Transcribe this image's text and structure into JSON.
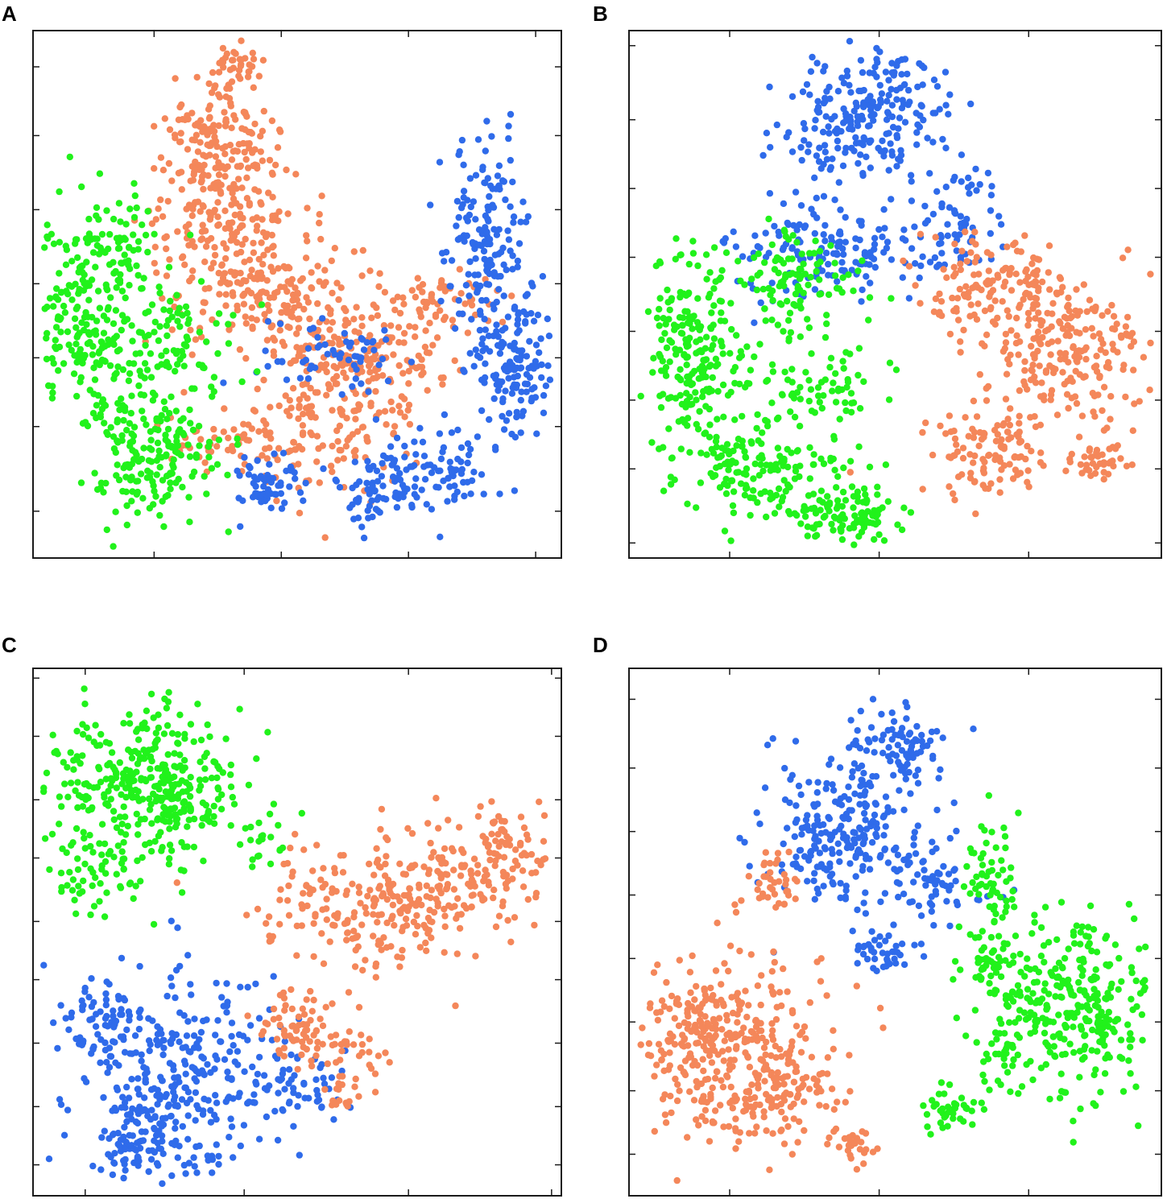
{
  "colors": {
    "orange": "#f4875a",
    "blue": "#2f6bea",
    "green": "#21f21b",
    "axis": "#1a1a1a"
  },
  "chart_data": [
    {
      "type": "scatter",
      "panel": "A",
      "title": "",
      "xlabel": "",
      "ylabel": "",
      "xlim": [
        0,
        100
      ],
      "ylim": [
        0,
        100
      ],
      "xticks": [
        23,
        47,
        71,
        95
      ],
      "yticks": [
        9,
        25,
        38,
        52,
        66,
        80,
        93
      ],
      "grid": false,
      "legend": "none",
      "series": [
        {
          "color": "orange",
          "blobs": [
            [
              38,
              93,
              3,
              2,
              30
            ],
            [
              35,
              80,
              5,
              7,
              140
            ],
            [
              37,
              64,
              8,
              8,
              200
            ],
            [
              45,
              50,
              8,
              5,
              150
            ],
            [
              58,
              40,
              7,
              4,
              80
            ],
            [
              55,
              25,
              9,
              7,
              140
            ],
            [
              66,
              36,
              7,
              5,
              90
            ],
            [
              78,
              49,
              5,
              3,
              60
            ],
            [
              36,
              22,
              6,
              3,
              40
            ]
          ]
        },
        {
          "color": "blue",
          "blobs": [
            [
              86,
              58,
              4,
              10,
              180
            ],
            [
              91,
              36,
              4,
              6,
              120
            ],
            [
              75,
              17,
              7,
              4,
              110
            ],
            [
              63,
              12,
              3,
              3,
              40
            ],
            [
              45,
              14,
              4,
              3,
              60
            ],
            [
              58,
              38,
              7,
              4,
              60
            ]
          ]
        },
        {
          "color": "green",
          "blobs": [
            [
              11,
              47,
              6,
              10,
              260
            ],
            [
              22,
              20,
              6,
              7,
              190
            ],
            [
              28,
              41,
              5,
              5,
              70
            ],
            [
              18,
              60,
              3,
              3,
              25
            ]
          ]
        }
      ]
    },
    {
      "type": "scatter",
      "panel": "B",
      "title": "",
      "xlabel": "",
      "ylabel": "",
      "xlim": [
        0,
        100
      ],
      "ylim": [
        0,
        100
      ],
      "xticks": [
        19,
        47,
        75
      ],
      "yticks": [
        3,
        17,
        30,
        43,
        57,
        70,
        83,
        97
      ],
      "grid": false,
      "legend": "none",
      "series": [
        {
          "color": "blue",
          "blobs": [
            [
              45,
              82,
              8,
              6,
              200
            ],
            [
              50,
              92,
              3,
              3,
              30
            ],
            [
              38,
              58,
              9,
              5,
              160
            ],
            [
              62,
              63,
              4,
              5,
              60
            ]
          ]
        },
        {
          "color": "orange",
          "blobs": [
            [
              83,
              39,
              8,
              6,
              220
            ],
            [
              68,
              20,
              6,
              4,
              110
            ],
            [
              64,
              51,
              5,
              5,
              90
            ],
            [
              75,
              52,
              3,
              4,
              50
            ],
            [
              88,
              18,
              3,
              2,
              40
            ]
          ]
        },
        {
          "color": "green",
          "blobs": [
            [
              12,
              38,
              5,
              9,
              220
            ],
            [
              25,
              18,
              8,
              5,
              160
            ],
            [
              40,
              8,
              6,
              3,
              110
            ],
            [
              30,
              53,
              7,
              5,
              110
            ],
            [
              35,
              33,
              8,
              4,
              70
            ]
          ]
        }
      ]
    },
    {
      "type": "scatter",
      "panel": "C",
      "title": "",
      "xlabel": "",
      "ylabel": "",
      "xlim": [
        0,
        100
      ],
      "ylim": [
        0,
        100
      ],
      "xticks": [
        10,
        40,
        71,
        98
      ],
      "yticks": [
        6,
        17,
        29,
        41,
        52,
        64,
        75,
        87,
        98
      ],
      "grid": false,
      "legend": "none",
      "series": [
        {
          "color": "green",
          "blobs": [
            [
              19,
              77,
              9,
              9,
              300
            ],
            [
              27,
              75,
              5,
              6,
              90
            ],
            [
              12,
              60,
              4,
              3,
              40
            ],
            [
              43,
              68,
              3,
              3,
              20
            ]
          ]
        },
        {
          "color": "blue",
          "blobs": [
            [
              27,
              22,
              10,
              11,
              320
            ],
            [
              20,
              10,
              4,
              3,
              60
            ],
            [
              12,
              32,
              4,
              5,
              60
            ],
            [
              50,
              21,
              5,
              4,
              60
            ]
          ]
        },
        {
          "color": "orange",
          "blobs": [
            [
              68,
              56,
              12,
              6,
              280
            ],
            [
              87,
              64,
              6,
              5,
              100
            ],
            [
              50,
              31,
              5,
              4,
              70
            ],
            [
              60,
              28,
              4,
              3,
              30
            ],
            [
              59,
              19,
              2,
              2,
              15
            ]
          ]
        }
      ]
    },
    {
      "type": "scatter",
      "panel": "D",
      "title": "",
      "xlabel": "",
      "ylabel": "",
      "xlim": [
        0,
        100
      ],
      "ylim": [
        0,
        100
      ],
      "xticks": [
        19,
        47,
        75
      ],
      "yticks": [
        8,
        20,
        33,
        45,
        57,
        69,
        81,
        94
      ],
      "grid": false,
      "legend": "none",
      "series": [
        {
          "color": "blue",
          "blobs": [
            [
              40,
              68,
              7,
              7,
              230
            ],
            [
              50,
              85,
              5,
              4,
              90
            ],
            [
              58,
              60,
              4,
              5,
              60
            ],
            [
              48,
              46,
              3,
              2,
              40
            ]
          ]
        },
        {
          "color": "orange",
          "blobs": [
            [
              20,
              27,
              9,
              9,
              300
            ],
            [
              28,
              19,
              6,
              5,
              90
            ],
            [
              12,
              31,
              4,
              6,
              60
            ],
            [
              42,
              10,
              2,
              2,
              25
            ],
            [
              27,
              59,
              3,
              3,
              40
            ]
          ]
        },
        {
          "color": "green",
          "blobs": [
            [
              83,
              36,
              8,
              8,
              320
            ],
            [
              69,
              44,
              3,
              3,
              50
            ],
            [
              60,
              16,
              3,
              2,
              40
            ],
            [
              70,
              26,
              2,
              3,
              20
            ],
            [
              68,
              60,
              3,
              6,
              60
            ]
          ]
        }
      ]
    }
  ]
}
